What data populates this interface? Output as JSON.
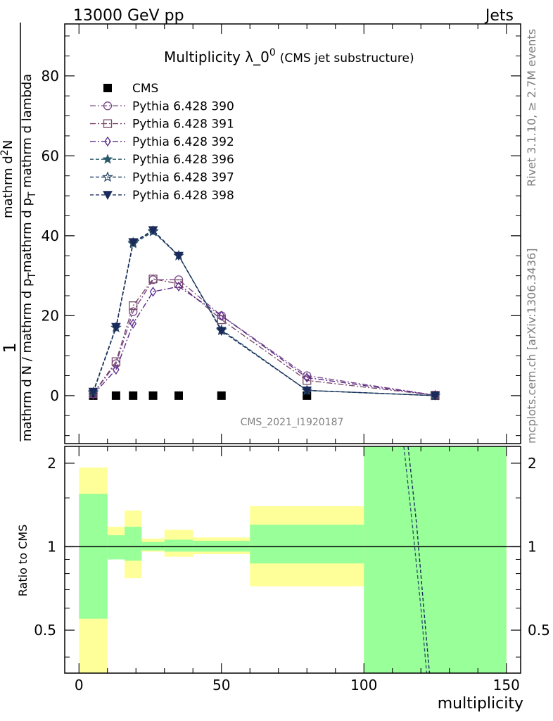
{
  "header": {
    "left": "13000 GeV pp",
    "right": "Jets"
  },
  "side_labels": {
    "rivet": "Rivet 3.1.10, ≥ 2.7M events",
    "mcplots": "mcplots.cern.ch [arXiv:1306.3436]"
  },
  "main_plot": {
    "title": "Multiplicity λ_0",
    "title_sup": "0",
    "title_suffix": "(CMS jet substructure)",
    "ylabel_numerator_1": "1",
    "ylabel_denominator": "mathrm d N / mathrm d p_T",
    "ylabel_full_a": "mathrm d N / mathrm d p",
    "ylabel_full_b": "mathrm d p",
    "ylabel_full_c": "mathrm d",
    "ylabel_main_a": "mathrm d",
    "ylabel_main_b": "N",
    "ylabel_main_c": "mathrm d p",
    "ylabel_main_d": "mathrm d lambda",
    "analysis_tag": "CMS_2021_I1920187"
  },
  "ratio_plot": {
    "ylabel": "Ratio to CMS",
    "xlabel": "multiplicity"
  },
  "chart_data": [
    {
      "type": "line",
      "title": "Multiplicity λ_0^0 (CMS jet substructure)",
      "xlabel": "multiplicity",
      "ylabel": "1 / (mathrm d N / mathrm d p_T) mathrm d^2N / mathrm d p_T mathrm d lambda",
      "xlim": [
        -5,
        155
      ],
      "ylim": [
        -12,
        93
      ],
      "xticks": [
        0,
        50,
        100,
        150
      ],
      "yticks": [
        0,
        20,
        40,
        60,
        80
      ],
      "legend_position": "top-left",
      "series": [
        {
          "name": "CMS",
          "marker": "square",
          "color": "#000000",
          "x": [
            5,
            13,
            19,
            26,
            35,
            50,
            80,
            125
          ],
          "y": [
            0,
            0,
            0,
            0,
            0,
            0,
            0,
            0
          ]
        },
        {
          "name": "Pythia 6.428 390",
          "marker": "circle",
          "color": "#7a4a8a",
          "dash": "8,3,2,3",
          "x": [
            5,
            13,
            19,
            26,
            35,
            50,
            80,
            125
          ],
          "y": [
            0.5,
            8.0,
            21.0,
            29.0,
            29.0,
            20.0,
            5.0,
            0.1
          ]
        },
        {
          "name": "Pythia 6.428 391",
          "marker": "open-square",
          "color": "#7a4a6a",
          "dash": "8,3,2,3",
          "x": [
            5,
            13,
            19,
            26,
            35,
            50,
            80,
            125
          ],
          "y": [
            0.5,
            8.5,
            22.5,
            29.2,
            28.0,
            19.0,
            3.8,
            0.1
          ]
        },
        {
          "name": "Pythia 6.428 392",
          "marker": "diamond",
          "color": "#5a2a8a",
          "dash": "8,3,2,3",
          "x": [
            5,
            13,
            19,
            26,
            35,
            50,
            80,
            125
          ],
          "y": [
            0.3,
            6.5,
            18.0,
            26.0,
            27.3,
            20.0,
            4.5,
            0.1
          ]
        },
        {
          "name": "Pythia 6.428 396",
          "marker": "star",
          "color": "#2a5a6a",
          "dash": "5,3",
          "x": [
            5,
            13,
            19,
            26,
            35,
            50,
            80,
            125
          ],
          "y": [
            0.8,
            17.0,
            38.0,
            41.0,
            35.0,
            16.5,
            1.3,
            0.0
          ]
        },
        {
          "name": "Pythia 6.428 397",
          "marker": "open-star",
          "color": "#2a4a6a",
          "dash": "5,3",
          "x": [
            5,
            13,
            19,
            26,
            35,
            50,
            80,
            125
          ],
          "y": [
            0.8,
            17.0,
            38.3,
            41.2,
            35.0,
            16.3,
            1.3,
            0.0
          ]
        },
        {
          "name": "Pythia 6.428 398",
          "marker": "triangle-down",
          "color": "#1a2a5a",
          "dash": "5,3",
          "x": [
            5,
            13,
            19,
            26,
            35,
            50,
            80,
            125
          ],
          "y": [
            1.0,
            17.2,
            38.4,
            41.4,
            35.0,
            16.2,
            1.3,
            0.0
          ]
        }
      ]
    },
    {
      "type": "area",
      "title": "",
      "xlabel": "multiplicity",
      "ylabel": "Ratio to CMS",
      "xlim": [
        -5,
        155
      ],
      "ylim": [
        0.35,
        2.3
      ],
      "xticks": [
        0,
        50,
        100,
        150
      ],
      "yticks": [
        0.5,
        1,
        2
      ],
      "reference_line": 1,
      "bins": [
        {
          "x0": 0,
          "x1": 10,
          "yellow": [
            0.35,
            1.93
          ],
          "green": [
            0.55,
            1.55
          ]
        },
        {
          "x0": 10,
          "x1": 16,
          "yellow": [
            0.9,
            1.18
          ],
          "green": [
            0.9,
            1.1
          ]
        },
        {
          "x0": 16,
          "x1": 22,
          "yellow": [
            0.77,
            1.35
          ],
          "green": [
            0.89,
            1.18
          ]
        },
        {
          "x0": 22,
          "x1": 30,
          "yellow": [
            0.96,
            1.07
          ],
          "green": [
            0.97,
            1.04
          ]
        },
        {
          "x0": 30,
          "x1": 40,
          "yellow": [
            0.92,
            1.15
          ],
          "green": [
            0.96,
            1.06
          ]
        },
        {
          "x0": 40,
          "x1": 60,
          "yellow": [
            0.94,
            1.08
          ],
          "green": [
            0.96,
            1.05
          ]
        },
        {
          "x0": 60,
          "x1": 100,
          "yellow": [
            0.72,
            1.4
          ],
          "green": [
            0.87,
            1.2
          ]
        },
        {
          "x0": 100,
          "x1": 150,
          "yellow": [
            0.35,
            2.3
          ],
          "green": [
            0.35,
            2.3
          ]
        }
      ],
      "series": [
        {
          "name": "Pythia 6.428 396",
          "color": "#2a5a6a",
          "x": [
            114,
            117,
            120,
            122
          ],
          "y": [
            2.3,
            1.2,
            0.6,
            0.35
          ]
        },
        {
          "name": "Pythia 6.428 398",
          "color": "#1a2a5a",
          "x": [
            115.5,
            118.5,
            121,
            123
          ],
          "y": [
            2.3,
            1.2,
            0.6,
            0.35
          ]
        }
      ]
    }
  ]
}
